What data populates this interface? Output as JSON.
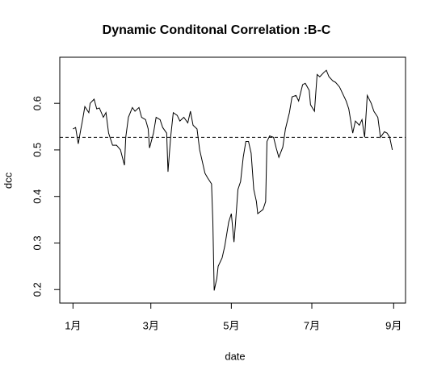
{
  "chart_data": {
    "type": "line",
    "title": "Dynamic Conditonal Correlation :B-C",
    "x_label": "date",
    "y_label": "dcc",
    "x": [
      0,
      2,
      4,
      6,
      7,
      9,
      12,
      13,
      16,
      18,
      20,
      23,
      25,
      27,
      30,
      33,
      36,
      39,
      40,
      42,
      45,
      47,
      50,
      52,
      55,
      57,
      58,
      61,
      63,
      66,
      68,
      71,
      72,
      74,
      76,
      79,
      81,
      84,
      87,
      89,
      91,
      94,
      96,
      98,
      100,
      102,
      105,
      106,
      107,
      109,
      110,
      113,
      115,
      118,
      120,
      122,
      123,
      125,
      127,
      129,
      131,
      133,
      135,
      137,
      139,
      140,
      144,
      146,
      147,
      149,
      152,
      154,
      156,
      159,
      161,
      164,
      166,
      169,
      171,
      174,
      176,
      179,
      180,
      183,
      185,
      187,
      190,
      192,
      194,
      197,
      199,
      202,
      204,
      207,
      209,
      212,
      214,
      217,
      219,
      221,
      223,
      226,
      228,
      231,
      233,
      236,
      238,
      240,
      242
    ],
    "series": [
      {
        "name": "dcc",
        "color": "#000000",
        "values": [
          0.545,
          0.548,
          0.513,
          0.545,
          0.56,
          0.593,
          0.58,
          0.6,
          0.609,
          0.588,
          0.59,
          0.57,
          0.58,
          0.536,
          0.51,
          0.51,
          0.5,
          0.467,
          0.527,
          0.57,
          0.591,
          0.583,
          0.591,
          0.57,
          0.565,
          0.545,
          0.504,
          0.536,
          0.57,
          0.565,
          0.548,
          0.536,
          0.453,
          0.527,
          0.58,
          0.574,
          0.562,
          0.57,
          0.558,
          0.583,
          0.553,
          0.545,
          0.5,
          0.475,
          0.45,
          0.44,
          0.427,
          0.345,
          0.198,
          0.224,
          0.25,
          0.268,
          0.293,
          0.345,
          0.363,
          0.302,
          0.337,
          0.415,
          0.432,
          0.484,
          0.518,
          0.518,
          0.493,
          0.415,
          0.389,
          0.363,
          0.372,
          0.389,
          0.518,
          0.53,
          0.527,
          0.504,
          0.484,
          0.506,
          0.545,
          0.58,
          0.614,
          0.617,
          0.605,
          0.64,
          0.643,
          0.628,
          0.597,
          0.583,
          0.662,
          0.657,
          0.666,
          0.671,
          0.657,
          0.648,
          0.645,
          0.635,
          0.623,
          0.605,
          0.588,
          0.536,
          0.562,
          0.553,
          0.565,
          0.527,
          0.617,
          0.6,
          0.583,
          0.57,
          0.527,
          0.539,
          0.536,
          0.527,
          0.5
        ]
      }
    ],
    "hline": 0.527,
    "xlim": [
      -10,
      252
    ],
    "xticks": [
      {
        "value": 0,
        "label": "1月"
      },
      {
        "value": 59,
        "label": "3月"
      },
      {
        "value": 120,
        "label": "5月"
      },
      {
        "value": 181,
        "label": "7月"
      },
      {
        "value": 243,
        "label": "9月"
      }
    ],
    "ylim": [
      0.171,
      0.699
    ],
    "yticks": [
      0.2,
      0.3,
      0.4,
      0.5,
      0.6
    ]
  }
}
